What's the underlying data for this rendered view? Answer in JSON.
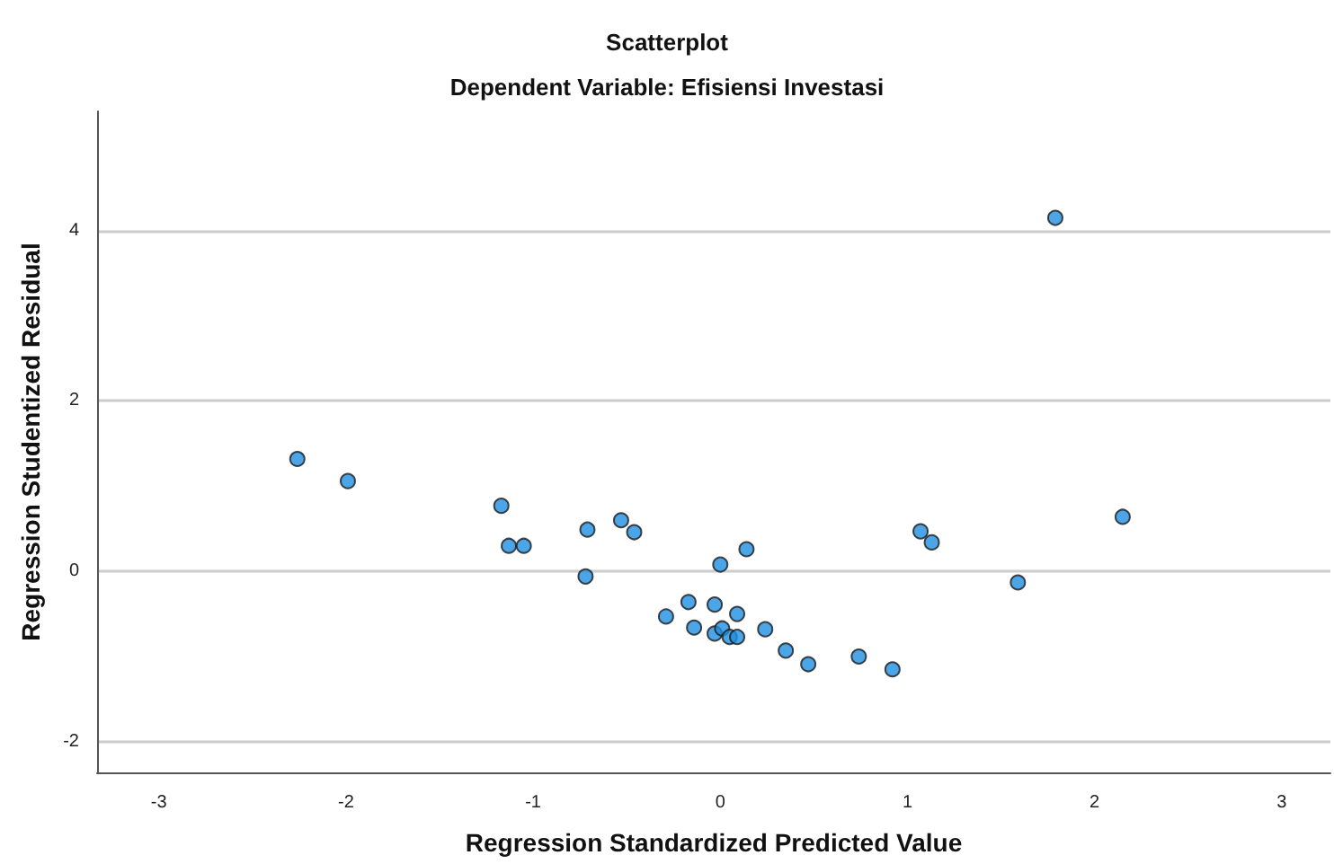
{
  "chart_data": {
    "type": "scatter",
    "title": "Scatterplot",
    "subtitle": "Dependent Variable: Efisiensi Investasi",
    "xlabel": "Regression Standardized Predicted Value",
    "ylabel": "Regression Studentized Residual",
    "x": [
      -2.26,
      -1.99,
      -1.17,
      -1.13,
      -1.05,
      -0.71,
      -0.72,
      -0.53,
      -0.46,
      0.0,
      0.14,
      -0.29,
      -0.17,
      -0.14,
      -0.03,
      -0.03,
      0.01,
      0.05,
      0.09,
      0.09,
      0.24,
      0.35,
      0.47,
      0.74,
      0.92,
      1.07,
      1.13,
      1.59,
      1.79,
      2.15
    ],
    "values": [
      1.32,
      1.06,
      0.77,
      0.3,
      0.3,
      0.49,
      -0.06,
      0.6,
      0.46,
      0.08,
      0.26,
      -0.53,
      -0.36,
      -0.66,
      -0.39,
      -0.73,
      -0.67,
      -0.77,
      -0.77,
      -0.5,
      -0.68,
      -0.93,
      -1.09,
      -1.0,
      -1.15,
      0.47,
      0.34,
      -0.13,
      4.15,
      0.64
    ],
    "color": "#1f8fe0",
    "xlim": [
      -3.33,
      3.26
    ],
    "xticks": [
      -3,
      -2,
      -1,
      0,
      1,
      2,
      3
    ],
    "ylim": [
      -2.36,
      5.4
    ],
    "yticks": [
      -2,
      0,
      2,
      4
    ],
    "grid": "y",
    "marker": "circle"
  }
}
